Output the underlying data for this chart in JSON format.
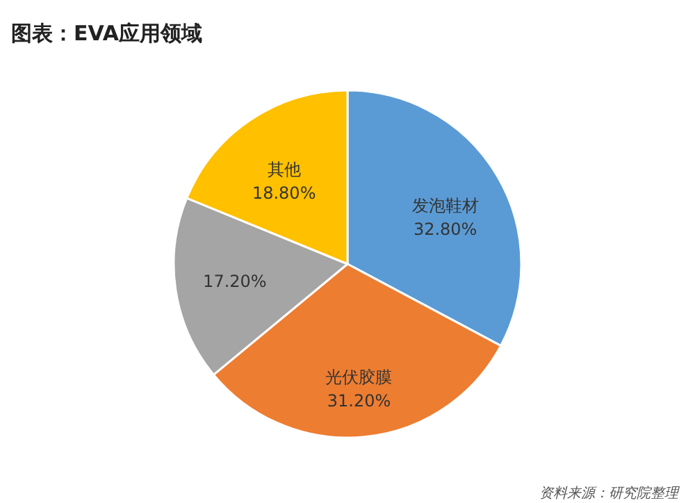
{
  "chart_data": {
    "type": "pie",
    "title": "图表：EVA应用领域",
    "categories": [
      "发泡鞋材",
      "光伏胶膜",
      null,
      "其他"
    ],
    "values": [
      32.8,
      31.2,
      17.2,
      18.8
    ],
    "value_labels": [
      "32.80%",
      "31.20%",
      "17.20%",
      "18.80%"
    ],
    "colors": [
      "#5b9bd5",
      "#ed7d31",
      "#a5a5a5",
      "#ffc000"
    ],
    "annotations": [
      "资料来源：研究院整理"
    ]
  }
}
